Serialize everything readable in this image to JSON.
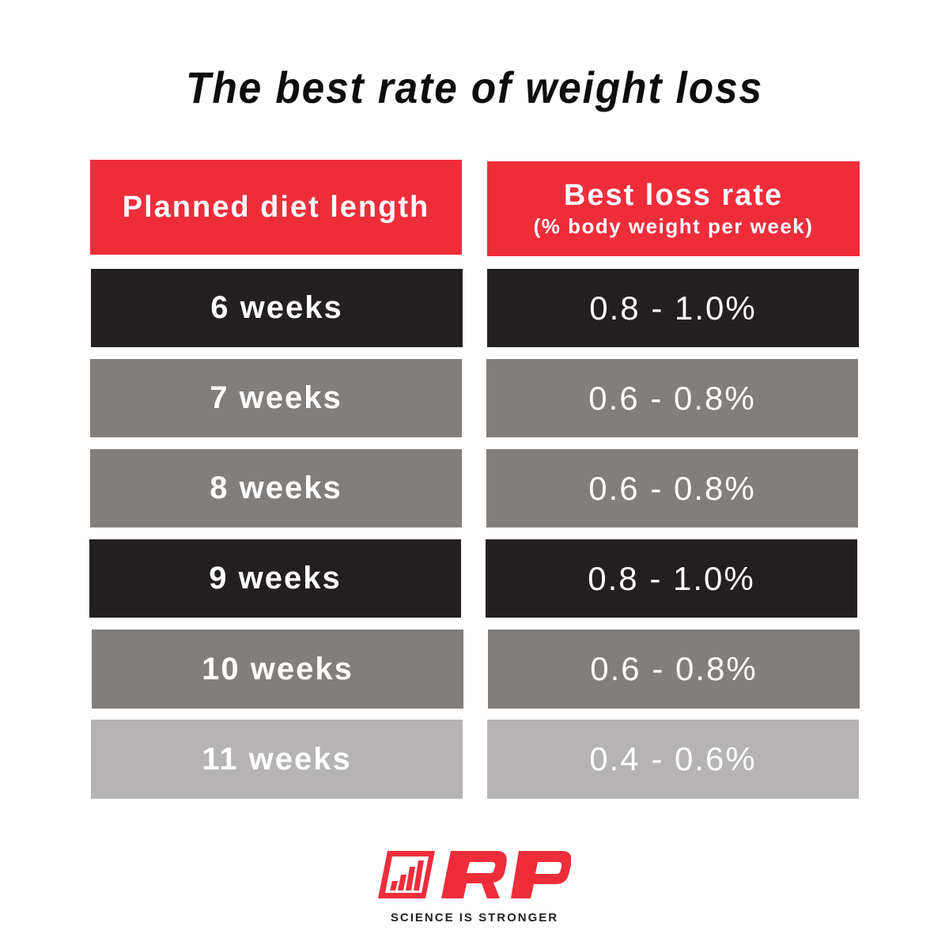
{
  "title": "The best rate of weight loss",
  "table": {
    "headers": {
      "length": "Planned diet length",
      "rate_main": "Best loss rate",
      "rate_sub": "(% body weight per week)"
    },
    "rows": [
      {
        "length": "6 weeks",
        "rate": "0.8 - 1.0%",
        "shade": "dark"
      },
      {
        "length": "7 weeks",
        "rate": "0.6 - 0.8%",
        "shade": "mid"
      },
      {
        "length": "8 weeks",
        "rate": "0.6 - 0.8%",
        "shade": "mid"
      },
      {
        "length": "9 weeks",
        "rate": "0.8 - 1.0%",
        "shade": "dark"
      },
      {
        "length": "10 weeks",
        "rate": "0.6 - 0.8%",
        "shade": "mid"
      },
      {
        "length": "11 weeks",
        "rate": "0.4 - 0.6%",
        "shade": "light"
      }
    ]
  },
  "brand": {
    "logo_text": "RP",
    "tagline": "SCIENCE IS STRONGER"
  },
  "colors": {
    "accent": "#ee2d3b",
    "dark": "#231f20",
    "mid": "#827e7c",
    "light": "#b5b3b4"
  }
}
